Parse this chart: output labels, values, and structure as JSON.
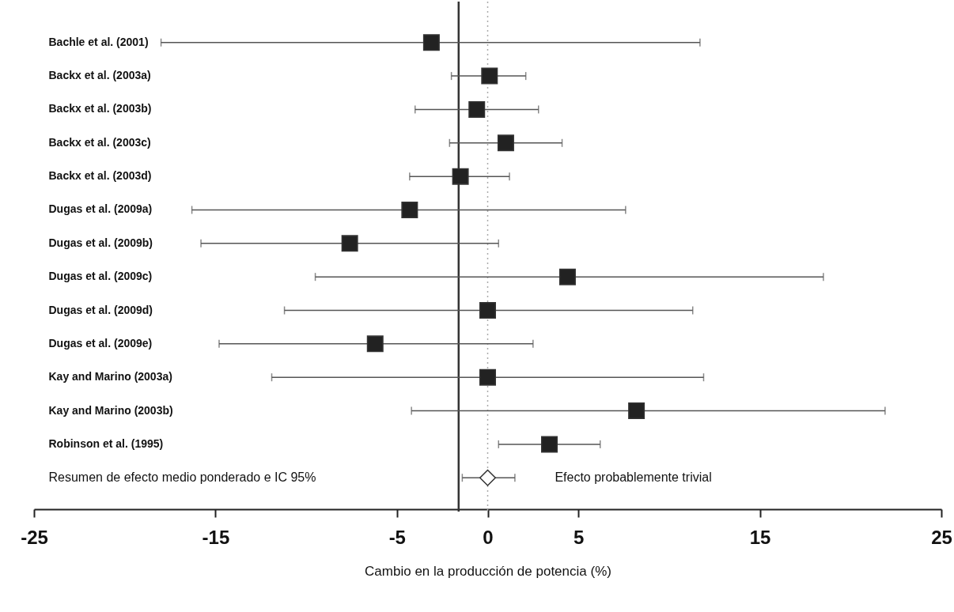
{
  "chart_data": {
    "type": "scatter",
    "categories": [
      "Bachle et al. (2001)",
      "Backx et al. (2003a)",
      "Backx et al. (2003b)",
      "Backx et al. (2003c)",
      "Backx et al. (2003d)",
      "Dugas et al. (2009a)",
      "Dugas et al. (2009b)",
      "Dugas et al. (2009c)",
      "Dugas et al. (2009d)",
      "Dugas et al. (2009e)",
      "Kay and Marino (2003a)",
      "Kay and Marino (2003b)",
      "Robinson et al. (1995)",
      "Resumen de efecto medio ponderado e IC 95%"
    ],
    "series": [
      {
        "color": "#222222",
        "marker": "square",
        "values": [
          -3.1,
          0.1,
          -0.6,
          1.0,
          -1.5,
          -4.3,
          -7.6,
          4.4,
          0.0,
          -6.2,
          0.0,
          8.2,
          3.4,
          null
        ],
        "errors": [
          [
            -18.0,
            11.7
          ],
          [
            -2.0,
            2.1
          ],
          [
            -4.0,
            2.8
          ],
          [
            -2.1,
            4.1
          ],
          [
            -4.3,
            1.2
          ],
          [
            -16.3,
            7.6
          ],
          [
            -15.8,
            0.6
          ],
          [
            -9.5,
            18.5
          ],
          [
            -11.2,
            11.3
          ],
          [
            -14.8,
            2.5
          ],
          [
            -11.9,
            11.9
          ],
          [
            -4.2,
            21.9
          ],
          [
            0.6,
            6.2
          ],
          null
        ]
      },
      {
        "color": "#ffffff",
        "marker": "diamond",
        "values": [
          null,
          null,
          null,
          null,
          null,
          null,
          null,
          null,
          null,
          null,
          null,
          null,
          null,
          0.0
        ],
        "errors": [
          null,
          null,
          null,
          null,
          null,
          null,
          null,
          null,
          null,
          null,
          null,
          null,
          null,
          [
            -1.4,
            1.5
          ]
        ]
      }
    ],
    "xlabel": "Cambio en la producción de potencia (%)",
    "xlim": [
      -25,
      25
    ],
    "xticks": [
      -25,
      -15,
      -5,
      0,
      5,
      15,
      25
    ],
    "ref_lines": [
      {
        "axis": "x",
        "value": -1.6,
        "color": "#333333",
        "line_style": "solid"
      },
      {
        "axis": "x",
        "value": 0,
        "color": "#aaaaaa",
        "line_style": "dotted"
      }
    ],
    "annotations": [
      "Efecto probablemente trivial"
    ],
    "orientation": "horizontal",
    "grid": false
  }
}
